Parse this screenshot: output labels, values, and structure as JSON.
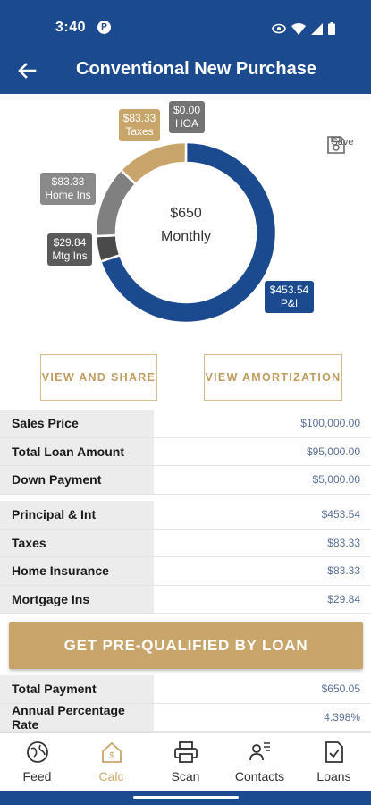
{
  "status": {
    "time": "3:40",
    "app_icon": "P"
  },
  "header": {
    "title": "Conventional New Purchase"
  },
  "chart_data": {
    "type": "pie",
    "variant": "donut",
    "center_amount": "$650",
    "center_label": "Monthly",
    "slices": [
      {
        "name": "P&I",
        "value": 453.54,
        "label_amount": "$453.54",
        "color": "#1c4a8f"
      },
      {
        "name": "Mtg Ins",
        "value": 29.84,
        "label_amount": "$29.84",
        "color": "#4a4a4a"
      },
      {
        "name": "Home Ins",
        "value": 83.33,
        "label_amount": "$83.33",
        "color": "#808080"
      },
      {
        "name": "Taxes",
        "value": 83.33,
        "label_amount": "$83.33",
        "color": "#c8a66b"
      },
      {
        "name": "HOA",
        "value": 0.0,
        "label_amount": "$0.00",
        "color": "#737373"
      }
    ]
  },
  "actions": {
    "save_label": "Save",
    "view_share": "VIEW AND SHARE",
    "view_amortization": "VIEW AMORTIZATION",
    "prequal": "GET PRE-QUALIFIED BY LOAN"
  },
  "loan_table": [
    {
      "label": "Sales Price",
      "value": "$100,000.00"
    },
    {
      "label": "Total Loan Amount",
      "value": "$95,000.00"
    },
    {
      "label": "Down Payment",
      "value": "$5,000.00"
    }
  ],
  "payment_table": [
    {
      "label": "Principal & Int",
      "value": "$453.54"
    },
    {
      "label": "Taxes",
      "value": "$83.33"
    },
    {
      "label": "Home Insurance",
      "value": "$83.33"
    },
    {
      "label": "Mortgage Ins",
      "value": "$29.84"
    }
  ],
  "summary_table": [
    {
      "label": "Total Payment",
      "value": "$650.05"
    },
    {
      "label": "Annual Percentage Rate",
      "value": "4.398%"
    }
  ],
  "nav": [
    {
      "label": "Feed",
      "icon": "globe-icon",
      "active": false
    },
    {
      "label": "Calc",
      "icon": "calculator-icon",
      "active": true
    },
    {
      "label": "Scan",
      "icon": "printer-icon",
      "active": false
    },
    {
      "label": "Contacts",
      "icon": "contacts-icon",
      "active": false
    },
    {
      "label": "Loans",
      "icon": "loans-icon",
      "active": false
    }
  ]
}
